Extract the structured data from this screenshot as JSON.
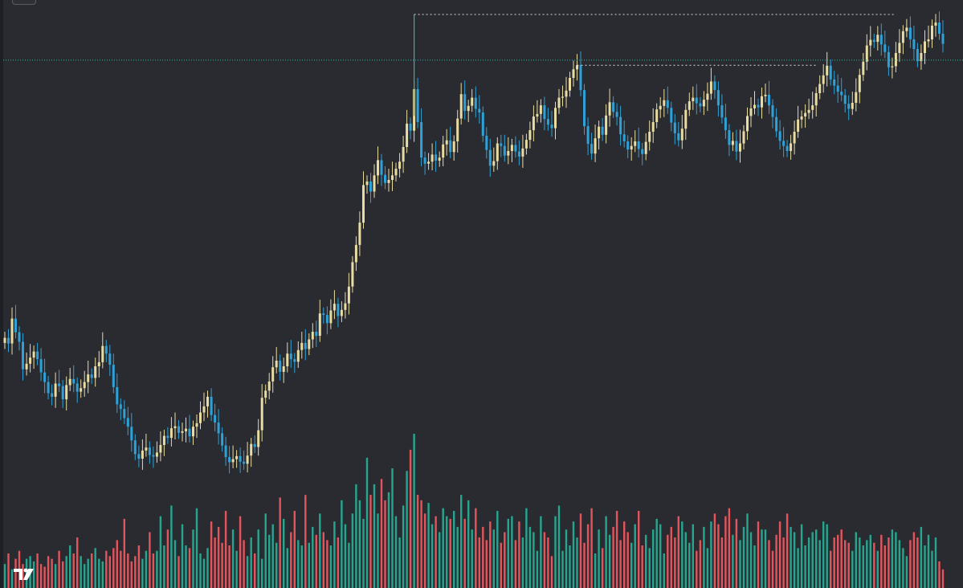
{
  "colors": {
    "background": "#2a2b31",
    "up_candle": "#e8dca2",
    "down_candle": "#2ea2d8",
    "volume_up": "#27a68f",
    "volume_down": "#e3545b",
    "crosshair": "#2ab5a5",
    "dotted_level": "#d9d9d9"
  },
  "icons": {
    "logo": "tradingview-logo-icon",
    "collapse": "chevron-icon"
  },
  "chart_data": {
    "type": "candlestick",
    "title": "",
    "xlabel": "",
    "ylabel": "",
    "grid": false,
    "ylim": [
      0,
      100
    ],
    "series": [
      {
        "values": [
          36.3,
          35.2,
          40.1,
          37.4,
          35.5,
          30.1,
          31.2,
          32.4,
          33.6,
          32.1,
          29.5,
          27.6,
          25.4,
          24.7,
          27.3,
          26.8,
          24.2,
          27.0,
          28.2,
          27.3,
          25.7,
          26.4,
          27.6,
          29.1,
          28.4,
          30.7,
          31.5,
          34.7,
          33.2,
          31.0,
          26.6,
          23.2,
          22.3,
          20.5,
          18.8,
          16.1,
          13.4,
          12.5,
          14.1,
          14.7,
          13.2,
          12.9,
          13.7,
          15.2,
          17.0,
          16.6,
          18.5,
          18.9,
          17.6,
          17.9,
          18.4,
          16.9,
          18.8,
          19.5,
          21.6,
          22.8,
          24.7,
          21.1,
          19.6,
          17.5,
          15.1,
          12.8,
          11.8,
          12.4,
          13.0,
          11.9,
          11.5,
          13.1,
          15.4,
          14.8,
          18.1,
          24.5,
          25.9,
          27.7,
          30.5,
          31.8,
          29.6,
          30.7,
          33.2,
          32.1,
          31.6,
          33.9,
          35.3,
          34.1,
          36.0,
          37.5,
          36.7,
          41.1,
          40.8,
          39.2,
          41.7,
          43.0,
          40.6,
          41.8,
          43.1,
          46.4,
          51.2,
          54.6,
          59.0,
          66.4,
          67.1,
          65.1,
          68.3,
          71.3,
          68.4,
          66.8,
          67.4,
          68.3,
          69.6,
          71.0,
          73.9,
          78.5,
          77.1,
          85.3,
          78.8,
          71.8,
          70.6,
          71.0,
          72.4,
          71.2,
          71.8,
          74.4,
          75.2,
          72.9,
          75.0,
          79.5,
          84.3,
          81.0,
          82.0,
          83.6,
          81.4,
          80.7,
          76.1,
          73.3,
          70.2,
          71.1,
          74.6,
          74.1,
          72.2,
          73.1,
          74.3,
          73.0,
          72.0,
          73.6,
          75.3,
          77.2,
          79.9,
          80.4,
          82.1,
          79.4,
          78.3,
          77.6,
          81.6,
          83.6,
          83.8,
          85.0,
          87.5,
          89.2,
          90.0,
          85.1,
          78.0,
          74.5,
          72.6,
          75.6,
          77.9,
          76.3,
          80.1,
          82.7,
          80.8,
          79.8,
          76.4,
          75.0,
          73.4,
          74.1,
          75.0,
          73.5,
          72.5,
          74.9,
          76.9,
          78.8,
          81.3,
          82.0,
          83.1,
          81.6,
          78.7,
          76.6,
          75.2,
          77.5,
          81.2,
          82.9,
          83.6,
          82.5,
          81.9,
          83.2,
          84.4,
          86.8,
          85.1,
          82.1,
          79.7,
          77.2,
          74.3,
          75.1,
          73.0,
          74.6,
          77.0,
          80.0,
          81.5,
          82.2,
          81.7,
          83.9,
          84.2,
          82.1,
          79.8,
          77.0,
          75.1,
          74.1,
          73.1,
          74.6,
          76.9,
          79.3,
          79.9,
          80.6,
          81.2,
          82.1,
          84.5,
          86.3,
          88.0,
          89.9,
          87.2,
          86.0,
          84.8,
          84.1,
          82.4,
          81.4,
          82.6,
          84.7,
          88.1,
          90.7,
          93.9,
          95.0,
          94.6,
          96.0,
          94.1,
          92.6,
          89.6,
          89.8,
          92.4,
          94.4,
          96.7,
          97.4,
          95.1,
          93.2,
          90.8,
          92.4,
          94.7,
          95.1,
          97.8,
          98.4,
          96.2,
          94.2
        ]
      }
    ],
    "volume": [
      9,
      13,
      7,
      11,
      14,
      9,
      11,
      12,
      10,
      13,
      9,
      8,
      12,
      11,
      9,
      14,
      10,
      12,
      16,
      13,
      19,
      12,
      9,
      11,
      13,
      15,
      11,
      10,
      14,
      12,
      15,
      18,
      14,
      26,
      13,
      10,
      12,
      16,
      11,
      14,
      21,
      13,
      14,
      27,
      16,
      22,
      31,
      18,
      12,
      24,
      16,
      15,
      22,
      30,
      13,
      11,
      15,
      25,
      19,
      23,
      17,
      29,
      16,
      22,
      14,
      27,
      18,
      12,
      19,
      13,
      22,
      11,
      28,
      20,
      24,
      17,
      34,
      26,
      15,
      21,
      29,
      18,
      16,
      35,
      17,
      23,
      20,
      28,
      21,
      18,
      16,
      25,
      19,
      33,
      24,
      17,
      28,
      39,
      33,
      26,
      49,
      35,
      39,
      28,
      41,
      33,
      36,
      45,
      27,
      19,
      31,
      44,
      52,
      58,
      35,
      33,
      28,
      32,
      24,
      27,
      21,
      30,
      27,
      26,
      29,
      23,
      35,
      26,
      33,
      22,
      30,
      19,
      23,
      18,
      25,
      22,
      29,
      17,
      21,
      26,
      27,
      18,
      25,
      19,
      30,
      23,
      21,
      14,
      27,
      21,
      19,
      12,
      27,
      31,
      14,
      22,
      16,
      25,
      19,
      28,
      17,
      24,
      30,
      13,
      22,
      15,
      27,
      20,
      23,
      29,
      18,
      25,
      21,
      17,
      24,
      29,
      16,
      20,
      15,
      22,
      26,
      24,
      13,
      20,
      23,
      19,
      27,
      25,
      21,
      17,
      24,
      14,
      18,
      23,
      15,
      25,
      28,
      24,
      19,
      27,
      30,
      20,
      26,
      18,
      23,
      28,
      21,
      16,
      25,
      22,
      22,
      18,
      14,
      20,
      25,
      19,
      28,
      23,
      21,
      15,
      24,
      16,
      19,
      21,
      22,
      18,
      25,
      24,
      14,
      19,
      20,
      22,
      18,
      17,
      14,
      21,
      19,
      16,
      18,
      20,
      17,
      14,
      20,
      16,
      19,
      22,
      21,
      18,
      15,
      12,
      18,
      21,
      19,
      23,
      16,
      20,
      14,
      19,
      10,
      7
    ],
    "annotations": {
      "crosshair_price": 91.0,
      "high_level_left": 100.0,
      "high_level_right": 90.0
    }
  }
}
